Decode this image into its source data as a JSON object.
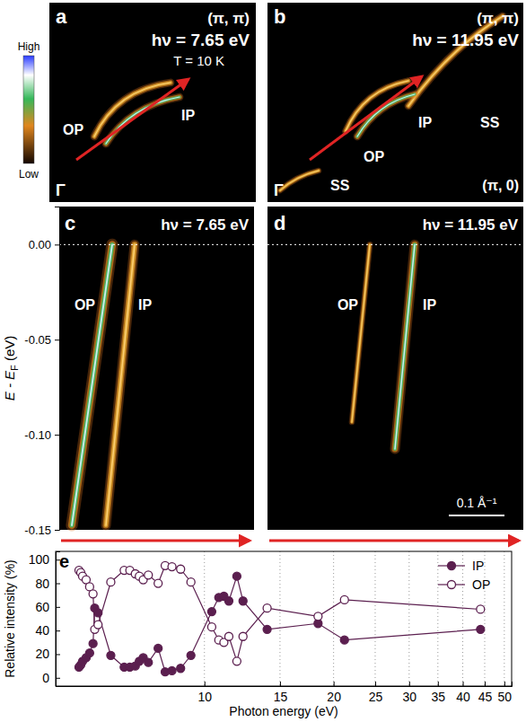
{
  "chart_data": [
    {
      "type": "image",
      "label": "a",
      "annotations": [
        "(π, π)",
        "hν = 7.65 eV",
        "T = 10 K",
        "IP",
        "OP",
        "Γ"
      ],
      "colorbar_labels": [
        "High",
        "Low"
      ]
    },
    {
      "type": "image",
      "label": "b",
      "annotations": [
        "(π, π)",
        "hν = 11.95 eV",
        "SS",
        "IP",
        "OP",
        "SS",
        "(π, 0)",
        "Γ"
      ]
    },
    {
      "type": "image",
      "label": "c",
      "annotations": [
        "hν = 7.65 eV",
        "OP",
        "IP"
      ],
      "ylabel": "E - EF (eV)",
      "ylim": [
        -0.15,
        0.02
      ],
      "yticks": [
        {
          "value": 0,
          "label": "0.00"
        },
        {
          "value": -0.05,
          "label": "-0.05"
        },
        {
          "value": -0.1,
          "label": "-0.10"
        },
        {
          "value": -0.15,
          "label": "-0.15"
        }
      ]
    },
    {
      "type": "image",
      "label": "d",
      "annotations": [
        "hν = 11.95 eV",
        "OP",
        "IP",
        "0.1 Å⁻¹"
      ]
    },
    {
      "type": "line",
      "label": "e",
      "xlabel": "Photon energy (eV)",
      "ylabel": "Relative intensity (%)",
      "log": "x",
      "xlim": [
        4.5,
        52
      ],
      "xticks": [
        10,
        15,
        20,
        25,
        30,
        35,
        40,
        45,
        50
      ],
      "ylim": [
        -7,
        107
      ],
      "yticks": [
        0,
        20,
        40,
        60,
        80,
        100
      ],
      "grid": true,
      "legend": "upper right",
      "x": [
        5.1,
        5.15,
        5.2,
        5.3,
        5.4,
        5.5,
        5.55,
        5.65,
        6.05,
        6.5,
        6.7,
        6.9,
        7.05,
        7.2,
        7.4,
        7.8,
        8.1,
        8.4,
        8.8,
        9.3,
        10.4,
        10.8,
        11.1,
        11.4,
        11.9,
        12.3,
        14,
        18.4,
        21.2,
        44
      ],
      "series": [
        {
          "name": "IP",
          "color": "#5b1f4f",
          "marker": "filled-circle",
          "values": [
            9,
            11,
            14,
            17,
            21,
            29,
            59,
            55,
            19,
            9,
            9,
            10,
            14,
            17,
            13,
            25,
            5,
            6,
            8,
            19,
            56,
            68,
            69,
            65,
            86,
            65,
            41,
            46,
            32,
            41
          ]
        },
        {
          "name": "OP",
          "color": "#5b1f4f",
          "marker": "open-circle",
          "values": [
            91,
            89,
            86,
            83,
            77,
            71,
            41,
            45,
            81,
            91,
            91,
            88,
            86,
            83,
            87,
            80,
            95,
            94,
            92,
            81,
            43,
            32,
            30,
            35,
            14,
            35,
            59,
            52,
            66,
            58
          ]
        }
      ]
    }
  ]
}
